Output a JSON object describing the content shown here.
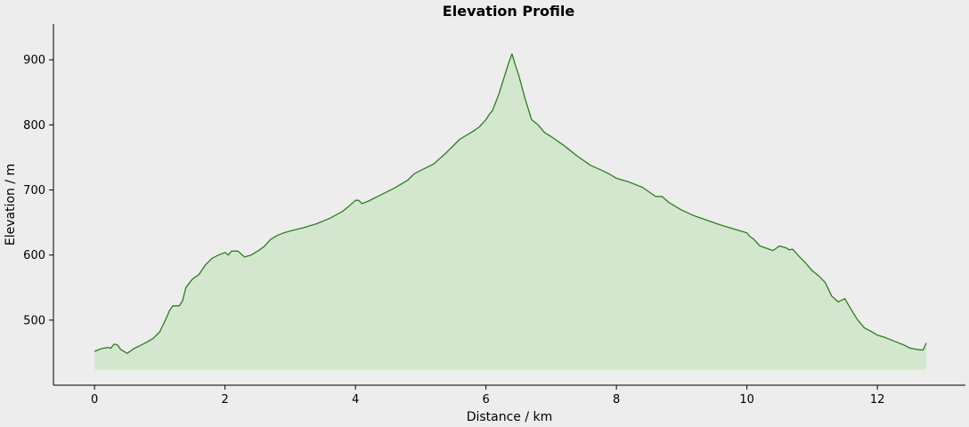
{
  "chart_data": {
    "type": "area",
    "title": "Elevation Profile",
    "xlabel": "Distance / km",
    "ylabel": "Elevation / m",
    "xlim": [
      -0.63,
      13.35
    ],
    "ylim": [
      400,
      955
    ],
    "x_ticks": [
      0,
      2,
      4,
      6,
      8,
      10,
      12
    ],
    "y_ticks": [
      500,
      600,
      700,
      800,
      900
    ],
    "fill_baseline": 424,
    "grid": false,
    "colors": {
      "line": "#2e7d1e",
      "fill": "#d3e7cf",
      "background": "#ededed"
    },
    "series": [
      {
        "x": [
          0,
          0.1,
          0.2,
          0.25,
          0.3,
          0.35,
          0.4,
          0.5,
          0.6,
          0.7,
          0.8,
          0.9,
          1.0,
          1.1,
          1.15,
          1.2,
          1.3,
          1.35,
          1.4,
          1.5,
          1.6,
          1.7,
          1.8,
          1.9,
          2.0,
          2.05,
          2.1,
          2.2,
          2.3,
          2.4,
          2.5,
          2.6,
          2.7,
          2.8,
          2.9,
          3.0,
          3.2,
          3.4,
          3.6,
          3.8,
          3.9,
          4.0,
          4.05,
          4.1,
          4.2,
          4.4,
          4.6,
          4.8,
          4.9,
          5.0,
          5.2,
          5.4,
          5.6,
          5.8,
          5.9,
          6.0,
          6.05,
          6.1,
          6.2,
          6.3,
          6.35,
          6.4,
          6.45,
          6.5,
          6.6,
          6.7,
          6.8,
          6.9,
          7.0,
          7.2,
          7.4,
          7.6,
          7.8,
          7.9,
          8.0,
          8.2,
          8.4,
          8.6,
          8.7,
          8.8,
          9.0,
          9.2,
          9.4,
          9.6,
          9.8,
          10.0,
          10.05,
          10.1,
          10.2,
          10.4,
          10.5,
          10.6,
          10.65,
          10.7,
          10.8,
          10.9,
          11.0,
          11.1,
          11.2,
          11.3,
          11.4,
          11.5,
          11.6,
          11.7,
          11.8,
          11.9,
          12.0,
          12.1,
          12.2,
          12.3,
          12.4,
          12.5,
          12.6,
          12.7,
          12.75
        ],
        "values": [
          452,
          456,
          458,
          457,
          463,
          462,
          455,
          449,
          456,
          461,
          466,
          472,
          482,
          503,
          515,
          522,
          522,
          530,
          550,
          563,
          570,
          585,
          595,
          600,
          604,
          600,
          606,
          606,
          597,
          600,
          606,
          613,
          624,
          630,
          634,
          637,
          642,
          648,
          656,
          667,
          675,
          684,
          684,
          679,
          683,
          693,
          703,
          715,
          725,
          730,
          740,
          758,
          778,
          790,
          797,
          808,
          816,
          822,
          848,
          880,
          896,
          909,
          892,
          877,
          840,
          808,
          800,
          788,
          782,
          768,
          752,
          738,
          729,
          724,
          718,
          712,
          704,
          690,
          690,
          681,
          669,
          660,
          653,
          646,
          640,
          634,
          628,
          625,
          614,
          607,
          614,
          611,
          608,
          609,
          598,
          588,
          576,
          568,
          558,
          537,
          528,
          533,
          516,
          500,
          488,
          483,
          477,
          474,
          470,
          466,
          462,
          457,
          455,
          454,
          465
        ]
      }
    ]
  }
}
